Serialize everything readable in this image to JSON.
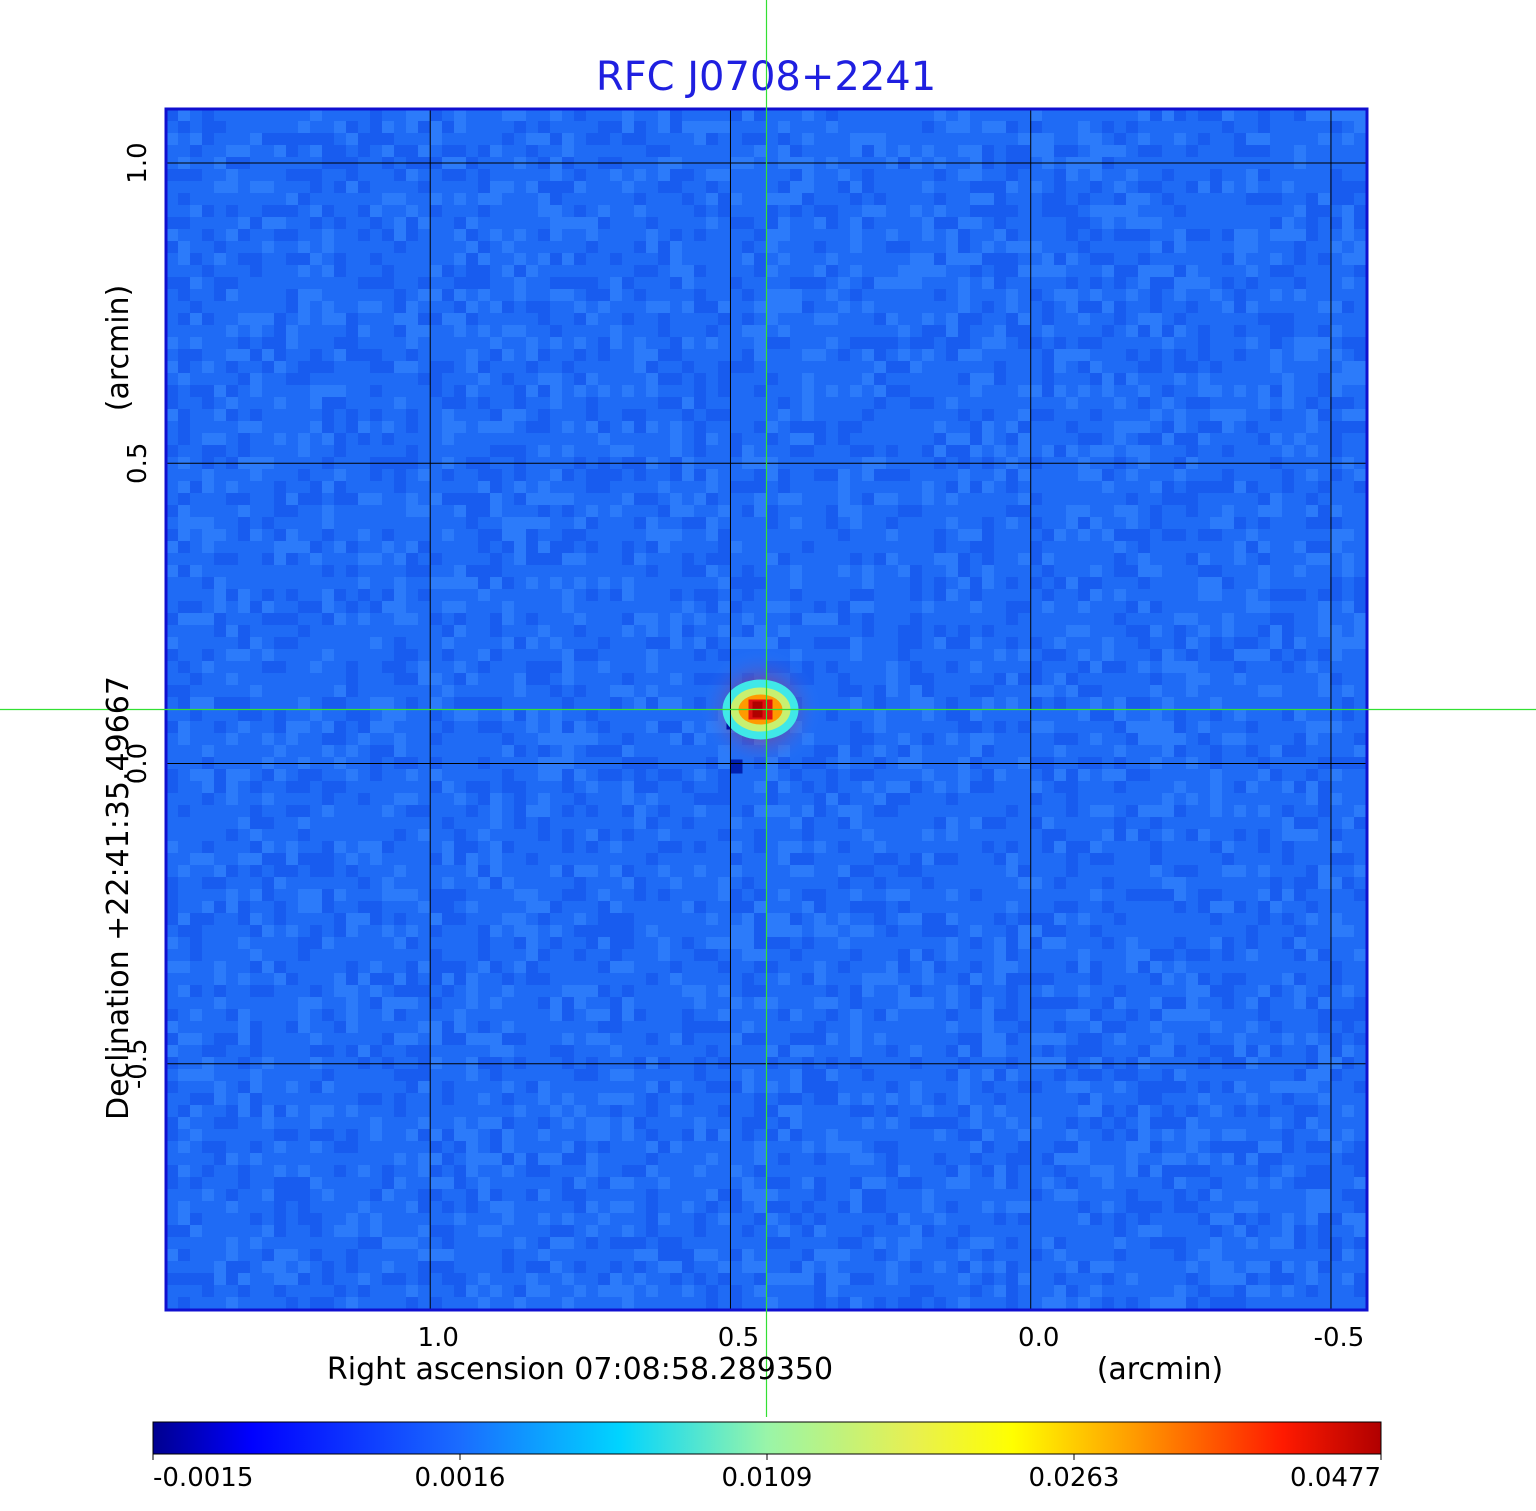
{
  "chart_data": {
    "type": "heatmap",
    "title": "RFC J0708+2241",
    "xlabel": "Right ascension  07:08:58.289350",
    "xunit": "(arcmin)",
    "ylabel": "Declination  +22:41:35.49667",
    "yunit": "(arcmin)",
    "x_ticks": [
      {
        "value": 1.0,
        "label": "1.0"
      },
      {
        "value": 0.5,
        "label": "0.5"
      },
      {
        "value": 0.0,
        "label": "0.0"
      },
      {
        "value": -0.5,
        "label": "-0.5"
      }
    ],
    "y_ticks": [
      {
        "value": 1.0,
        "label": "1.0"
      },
      {
        "value": 0.5,
        "label": "0.5"
      },
      {
        "value": 0.0,
        "label": "0.0"
      },
      {
        "value": -0.5,
        "label": "-0.5"
      }
    ],
    "xlim": [
      1.44,
      -0.56
    ],
    "ylim": [
      -0.91,
      1.09
    ],
    "crosshair": {
      "x": 0.44,
      "y": 0.09
    },
    "peak": {
      "x": 0.45,
      "y": 0.09,
      "value": 0.0477
    },
    "grid": true,
    "colormap": "jet",
    "colorbar": {
      "ticks": [
        {
          "value": -0.0015,
          "label": "-0.0015"
        },
        {
          "value": 0.0016,
          "label": "0.0016"
        },
        {
          "value": 0.0109,
          "label": "0.0109"
        },
        {
          "value": 0.0263,
          "label": "0.0263"
        },
        {
          "value": 0.0477,
          "label": "0.0477"
        }
      ]
    },
    "colors": {
      "background": "#1f6bf5",
      "grid": "#000000",
      "crosshair": "#33e033",
      "frame": "#1010d0",
      "title": "#1f1fe0"
    }
  }
}
